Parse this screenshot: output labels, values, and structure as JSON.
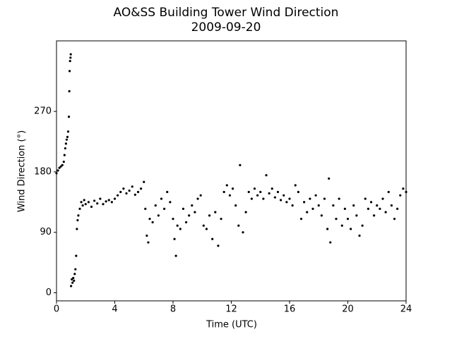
{
  "chart_data": {
    "type": "scatter",
    "title": "AO&SS Building Tower Wind Direction",
    "subtitle": "2009-09-20",
    "x_label": "Time (UTC)",
    "y_label": "Wind Direction (°)",
    "xlim": [
      0,
      24
    ],
    "xticks": [
      0,
      4,
      8,
      12,
      16,
      20,
      24
    ],
    "ylim": [
      -12,
      375
    ],
    "yticks": [
      0,
      90,
      180,
      270
    ],
    "grid": false,
    "x": [
      0,
      0.1,
      0.2,
      0.3,
      0.4,
      0.5,
      0.55,
      0.6,
      0.65,
      0.7,
      0.75,
      0.8,
      0.85,
      0.88,
      0.9,
      0.93,
      0.96,
      0.98,
      1.0,
      1.05,
      1.1,
      1.15,
      1.2,
      1.25,
      1.3,
      1.35,
      1.4,
      1.45,
      1.5,
      1.6,
      1.7,
      1.8,
      1.9,
      2.0,
      2.2,
      2.4,
      2.6,
      2.8,
      3.0,
      3.2,
      3.4,
      3.6,
      3.8,
      4.0,
      4.2,
      4.4,
      4.6,
      4.8,
      5.0,
      5.2,
      5.4,
      5.6,
      5.8,
      6.0,
      6.1,
      6.2,
      6.3,
      6.4,
      6.6,
      6.8,
      7.0,
      7.2,
      7.4,
      7.6,
      7.8,
      8.0,
      8.1,
      8.2,
      8.3,
      8.5,
      8.7,
      8.9,
      9.1,
      9.3,
      9.5,
      9.7,
      9.9,
      10.1,
      10.3,
      10.5,
      10.7,
      10.9,
      11.1,
      11.3,
      11.5,
      11.7,
      11.9,
      12.1,
      12.3,
      12.5,
      12.6,
      12.8,
      13.0,
      13.2,
      13.4,
      13.6,
      13.8,
      14.0,
      14.2,
      14.4,
      14.6,
      14.8,
      15.0,
      15.2,
      15.4,
      15.6,
      15.8,
      16.0,
      16.2,
      16.4,
      16.6,
      16.8,
      17.0,
      17.2,
      17.4,
      17.6,
      17.8,
      18.0,
      18.2,
      18.4,
      18.6,
      18.7,
      18.8,
      19.0,
      19.2,
      19.4,
      19.6,
      19.8,
      20.0,
      20.2,
      20.4,
      20.6,
      20.8,
      21.0,
      21.2,
      21.4,
      21.6,
      21.8,
      22.0,
      22.2,
      22.4,
      22.6,
      22.8,
      23.0,
      23.2,
      23.4,
      23.6,
      23.8,
      24.0
    ],
    "series": [
      {
        "color": "#000000",
        "values": [
          178,
          182,
          186,
          188,
          190,
          195,
          205,
          215,
          222,
          228,
          232,
          240,
          262,
          300,
          330,
          345,
          350,
          355,
          10,
          20,
          15,
          22,
          18,
          28,
          35,
          55,
          95,
          108,
          115,
          125,
          135,
          130,
          138,
          132,
          135,
          128,
          137,
          133,
          140,
          132,
          136,
          138,
          135,
          140,
          145,
          150,
          155,
          148,
          152,
          158,
          146,
          150,
          155,
          165,
          125,
          85,
          75,
          110,
          105,
          130,
          115,
          140,
          125,
          150,
          135,
          110,
          80,
          55,
          100,
          95,
          125,
          105,
          115,
          130,
          120,
          140,
          145,
          100,
          95,
          115,
          80,
          120,
          70,
          110,
          150,
          160,
          145,
          155,
          130,
          100,
          190,
          90,
          120,
          150,
          140,
          155,
          145,
          150,
          140,
          175,
          148,
          155,
          142,
          150,
          138,
          145,
          135,
          140,
          130,
          160,
          150,
          110,
          135,
          120,
          140,
          125,
          145,
          130,
          115,
          140,
          95,
          170,
          75,
          130,
          110,
          140,
          100,
          125,
          110,
          95,
          130,
          115,
          85,
          100,
          140,
          125,
          135,
          115,
          130,
          125,
          140,
          120,
          150,
          130,
          110,
          125,
          145,
          155,
          150
        ]
      }
    ]
  }
}
